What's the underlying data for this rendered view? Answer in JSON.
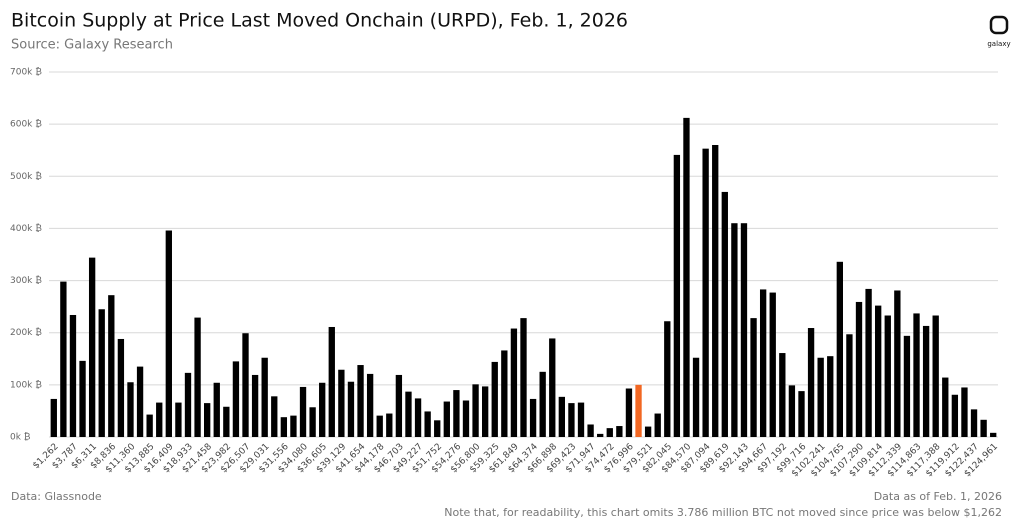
{
  "chart_data": {
    "type": "bar",
    "title": "Bitcoin Supply at Price Last Moved Onchain (URPD), Feb. 1, 2026",
    "subtitle": "Source: Galaxy Research",
    "logo": "galaxy",
    "source": "Data: Glassnode",
    "date_note": "Data as of Feb. 1, 2026",
    "footnote": "Note that, for readability, this chart omits 3.786 million BTC not moved since price was below $1,262",
    "categories": [
      "$1,262",
      null,
      "$3,787",
      null,
      "$6,311",
      null,
      "$8,836",
      null,
      "$11,360",
      null,
      "$13,885",
      null,
      "$16,409",
      null,
      "$18,933",
      null,
      "$21,458",
      null,
      "$23,982",
      null,
      "$26,507",
      null,
      "$29,031",
      null,
      "$31,556",
      null,
      "$34,080",
      null,
      "$36,605",
      null,
      "$39,129",
      null,
      "$41,654",
      null,
      "$44,178",
      null,
      "$46,703",
      null,
      "$49,227",
      null,
      "$51,752",
      null,
      "$54,276",
      null,
      "$56,800",
      null,
      "$59,325",
      null,
      "$61,849",
      null,
      "$64,374",
      null,
      "$66,898",
      null,
      "$69,423",
      null,
      "$71,947",
      null,
      "$74,472",
      null,
      "$76,996",
      null,
      "$79,521",
      null,
      "$82,045",
      null,
      "$84,570",
      null,
      "$87,094",
      null,
      "$89,619",
      null,
      "$92,143",
      null,
      "$94,667",
      null,
      "$97,192",
      null,
      "$99,716",
      null,
      "$102,241",
      null,
      "$104,765",
      null,
      "$107,290",
      null,
      "$109,814",
      null,
      "$112,339",
      null,
      "$114,863",
      null,
      "$117,388",
      null,
      "$119,912",
      null,
      "$122,437",
      null,
      "$124,961"
    ],
    "values": [
      73000,
      298000,
      234000,
      146000,
      344000,
      245000,
      272000,
      188000,
      105000,
      135000,
      43000,
      66000,
      396000,
      66000,
      123000,
      229000,
      65000,
      104000,
      58000,
      145000,
      199000,
      119000,
      152000,
      78000,
      38000,
      41000,
      96000,
      57000,
      104000,
      211000,
      129000,
      106000,
      138000,
      121000,
      41000,
      45000,
      119000,
      87000,
      74000,
      49000,
      32000,
      68000,
      90000,
      70000,
      101000,
      97000,
      144000,
      166000,
      208000,
      228000,
      73000,
      125000,
      189000,
      77000,
      65000,
      66000,
      24000,
      6000,
      17000,
      21000,
      93000,
      100000,
      20000,
      45000,
      222000,
      541000,
      612000,
      152000,
      553000,
      560000,
      470000,
      410000,
      410000,
      228000,
      283000,
      277000,
      161000,
      99000,
      88000,
      209000,
      152000,
      155000,
      336000,
      197000,
      259000,
      284000,
      252000,
      233000,
      281000,
      194000,
      237000,
      213000,
      233000,
      114000,
      81000,
      95000,
      53000,
      33000,
      8000
    ],
    "color": "#000000",
    "highlight_index": 61,
    "highlight_color": "#f26722",
    "ylim": [
      0,
      700000
    ],
    "yticks": [
      {
        "value": 0,
        "label": "0k ₿"
      },
      {
        "value": 100000,
        "label": "100k ₿"
      },
      {
        "value": 200000,
        "label": "200k ₿"
      },
      {
        "value": 300000,
        "label": "300k ₿"
      },
      {
        "value": 400000,
        "label": "400k ₿"
      },
      {
        "value": 500000,
        "label": "500k ₿"
      },
      {
        "value": 600000,
        "label": "600k ₿"
      },
      {
        "value": 700000,
        "label": "700k ₿"
      }
    ],
    "grid": true
  }
}
